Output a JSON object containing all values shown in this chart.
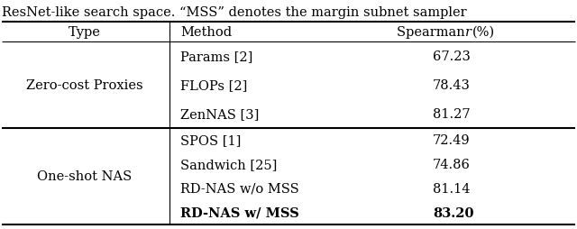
{
  "caption": "ResNet-like search space. “MSS” denotes the margin subnet sampler",
  "rows": [
    {
      "method": "Params [2]",
      "score": "67.23",
      "bold": false
    },
    {
      "method": "FLOPs [2]",
      "score": "78.43",
      "bold": false
    },
    {
      "method": "ZenNAS [3]",
      "score": "81.27",
      "bold": false
    },
    {
      "method": "SPOS [1]",
      "score": "72.49",
      "bold": false
    },
    {
      "method": "Sandwich [25]",
      "score": "74.86",
      "bold": false
    },
    {
      "method": "RD-NAS w/o MSS",
      "score": "81.14",
      "bold": false
    },
    {
      "method": "RD-NAS w/ MSS",
      "score": "83.20",
      "bold": true
    }
  ],
  "type_labels": [
    "Zero-cost Proxies",
    "One-shot NAS"
  ],
  "fontsize": 10.5,
  "bg_color": "#ffffff",
  "text_color": "#000000",
  "caption_fontsize": 10.5,
  "header_fontsize": 10.5
}
